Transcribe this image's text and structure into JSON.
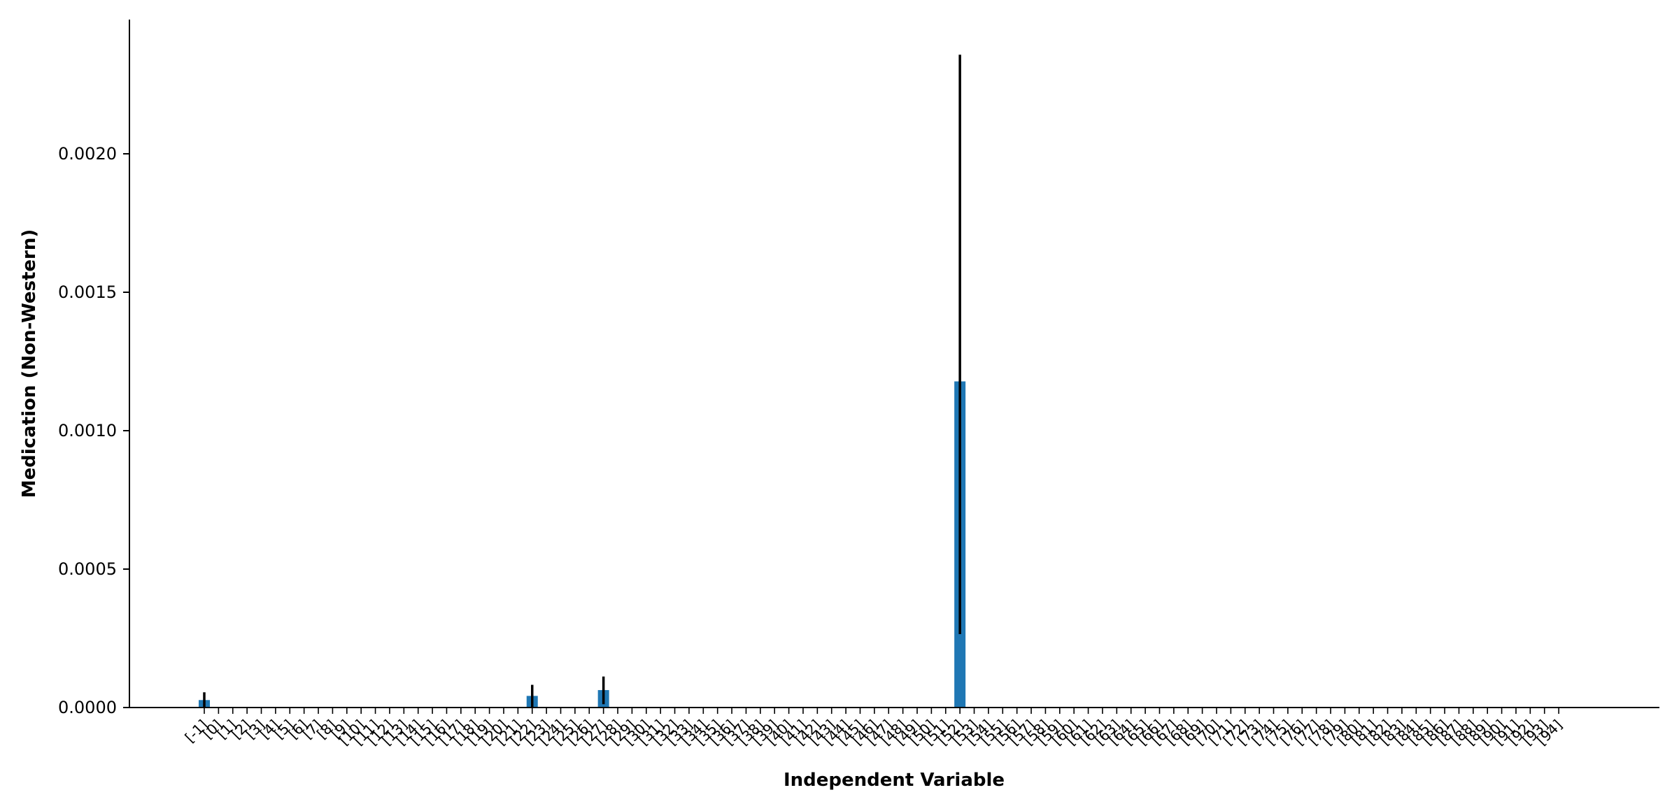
{
  "chart_data": {
    "type": "bar",
    "title": "",
    "xlabel": "Independent Variable",
    "ylabel": "Medication (Non-Western)",
    "ylim": [
      0,
      0.00245
    ],
    "yticks": [
      "0.0000",
      "0.0005",
      "0.0010",
      "0.0015",
      "0.0020"
    ],
    "ytick_values": [
      0,
      0.0005,
      0.001,
      0.0015,
      0.002
    ],
    "bar_color": "#1f77b4",
    "error_color": "#000000",
    "grid": false,
    "legend": "none",
    "categories": [
      "[-1]",
      "[0]",
      "[1]",
      "[2]",
      "[3]",
      "[4]",
      "[5]",
      "[6]",
      "[7]",
      "[8]",
      "[9]",
      "[10]",
      "[11]",
      "[12]",
      "[13]",
      "[14]",
      "[15]",
      "[16]",
      "[17]",
      "[18]",
      "[19]",
      "[20]",
      "[21]",
      "[22]",
      "[23]",
      "[24]",
      "[25]",
      "[26]",
      "[27]",
      "[28]",
      "[29]",
      "[30]",
      "[31]",
      "[32]",
      "[33]",
      "[34]",
      "[35]",
      "[36]",
      "[37]",
      "[38]",
      "[39]",
      "[40]",
      "[41]",
      "[42]",
      "[43]",
      "[44]",
      "[45]",
      "[46]",
      "[47]",
      "[48]",
      "[49]",
      "[50]",
      "[51]",
      "[52]",
      "[53]",
      "[54]",
      "[55]",
      "[56]",
      "[57]",
      "[58]",
      "[59]",
      "[60]",
      "[61]",
      "[62]",
      "[63]",
      "[64]",
      "[65]",
      "[66]",
      "[67]",
      "[68]",
      "[69]",
      "[70]",
      "[71]",
      "[72]",
      "[73]",
      "[74]",
      "[75]",
      "[76]",
      "[77]",
      "[78]",
      "[79]",
      "[80]",
      "[81]",
      "[82]",
      "[83]",
      "[84]",
      "[85]",
      "[86]",
      "[87]",
      "[88]",
      "[89]",
      "[90]",
      "[91]",
      "[92]",
      "[93]",
      "[94]"
    ],
    "values": [
      2.7e-05,
      0,
      0,
      0,
      0,
      0,
      0,
      0,
      0,
      0,
      0,
      0,
      0,
      0,
      0,
      0,
      0,
      0,
      0,
      0,
      0,
      0,
      0,
      4.2e-05,
      0,
      0,
      0,
      0,
      6.3e-05,
      0,
      0,
      0,
      0,
      0,
      0,
      0,
      0,
      0,
      0,
      0,
      0,
      0,
      0,
      0,
      0,
      0,
      0,
      0,
      0,
      0,
      0,
      0,
      0,
      0.001178,
      0,
      0,
      0,
      0,
      0,
      0,
      0,
      0,
      0,
      0,
      0,
      0,
      0,
      0,
      0,
      0,
      0,
      0,
      0,
      0,
      0,
      0,
      0,
      0,
      0,
      0,
      0,
      0,
      0,
      0,
      0,
      0,
      0,
      0,
      0,
      0,
      0,
      0,
      0,
      0,
      0,
      0
    ],
    "error_low": [
      2e-06,
      0,
      0,
      0,
      0,
      0,
      0,
      0,
      0,
      0,
      0,
      0,
      0,
      0,
      0,
      0,
      0,
      0,
      0,
      0,
      0,
      0,
      0,
      0.0,
      0,
      0,
      0,
      0,
      1.2e-05,
      0,
      0,
      0,
      0,
      0,
      0,
      0,
      0,
      0,
      0,
      0,
      0,
      0,
      0,
      0,
      0,
      0,
      0,
      0,
      0,
      0,
      0,
      0,
      0,
      0.000265,
      0,
      0,
      0,
      0,
      0,
      0,
      0,
      0,
      0,
      0,
      0,
      0,
      0,
      0,
      0,
      0,
      0,
      0,
      0,
      0,
      0,
      0,
      0,
      0,
      0,
      0,
      0,
      0,
      0,
      0,
      0,
      0,
      0,
      0,
      0,
      0,
      0,
      0,
      0,
      0,
      0,
      0
    ],
    "error_high": [
      5.5e-05,
      0,
      0,
      0,
      0,
      0,
      0,
      0,
      0,
      0,
      0,
      0,
      0,
      0,
      0,
      0,
      0,
      0,
      0,
      0,
      0,
      0,
      0,
      8.2e-05,
      0,
      0,
      0,
      0,
      0.000112,
      0,
      0,
      0,
      0,
      0,
      0,
      0,
      0,
      0,
      0,
      0,
      0,
      0,
      0,
      0,
      0,
      0,
      0,
      0,
      0,
      0,
      0,
      0,
      0,
      0.002358,
      0,
      0,
      0,
      0,
      0,
      0,
      0,
      0,
      0,
      0,
      0,
      0,
      0,
      0,
      0,
      0,
      0,
      0,
      0,
      0,
      0,
      0,
      0,
      0,
      0,
      0,
      0,
      0,
      0,
      0,
      0,
      0,
      0,
      0,
      0,
      0,
      0,
      0,
      0,
      0,
      0,
      0
    ]
  }
}
